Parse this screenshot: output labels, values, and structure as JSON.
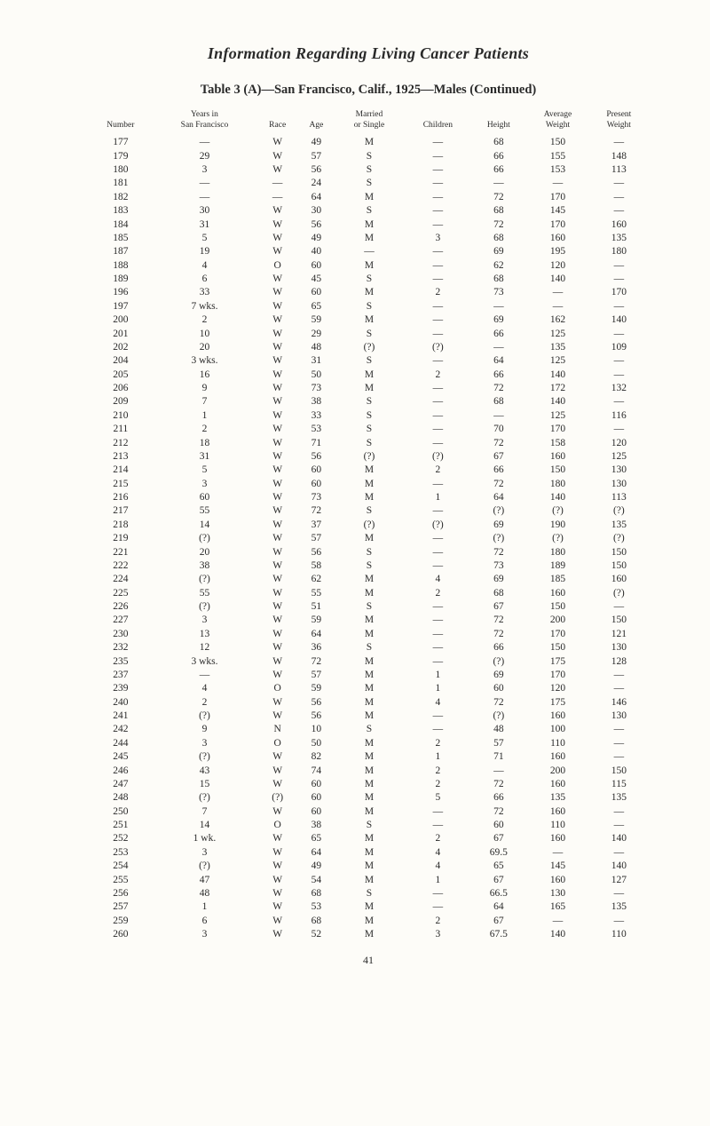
{
  "title": "Information Regarding Living Cancer Patients",
  "caption": "Table 3 (A)—San Francisco, Calif., 1925—Males (Continued)",
  "pageNumber": "41",
  "table": {
    "columns": [
      "Number",
      "Years in\nSan Francisco",
      "Race",
      "Age",
      "Married\nor Single",
      "Children",
      "Height",
      "Average\nWeight",
      "Present\nWeight"
    ],
    "rows": [
      [
        "177",
        "—",
        "W",
        "49",
        "M",
        "—",
        "68",
        "150",
        "—"
      ],
      [
        "179",
        "29",
        "W",
        "57",
        "S",
        "—",
        "66",
        "155",
        "148"
      ],
      [
        "180",
        "3",
        "W",
        "56",
        "S",
        "—",
        "66",
        "153",
        "113"
      ],
      [
        "181",
        "—",
        "—",
        "24",
        "S",
        "—",
        "—",
        "—",
        "—"
      ],
      [
        "182",
        "—",
        "—",
        "64",
        "M",
        "—",
        "72",
        "170",
        "—"
      ],
      [
        "183",
        "30",
        "W",
        "30",
        "S",
        "—",
        "68",
        "145",
        "—"
      ],
      [
        "184",
        "31",
        "W",
        "56",
        "M",
        "—",
        "72",
        "170",
        "160"
      ],
      [
        "185",
        "5",
        "W",
        "49",
        "M",
        "3",
        "68",
        "160",
        "135"
      ],
      [
        "187",
        "19",
        "W",
        "40",
        "—",
        "—",
        "69",
        "195",
        "180"
      ],
      [
        "188",
        "4",
        "O",
        "60",
        "M",
        "—",
        "62",
        "120",
        "—"
      ],
      [
        "189",
        "6",
        "W",
        "45",
        "S",
        "—",
        "68",
        "140",
        "—"
      ],
      [
        "196",
        "33",
        "W",
        "60",
        "M",
        "2",
        "73",
        "—",
        "170"
      ],
      [
        "197",
        "7 wks.",
        "W",
        "65",
        "S",
        "—",
        "—",
        "—",
        "—"
      ],
      [
        "200",
        "2",
        "W",
        "59",
        "M",
        "—",
        "69",
        "162",
        "140"
      ],
      [
        "201",
        "10",
        "W",
        "29",
        "S",
        "—",
        "66",
        "125",
        "—"
      ],
      [
        "202",
        "20",
        "W",
        "48",
        "(?)",
        "(?)",
        "—",
        "135",
        "109"
      ],
      [
        "204",
        "3 wks.",
        "W",
        "31",
        "S",
        "—",
        "64",
        "125",
        "—"
      ],
      [
        "205",
        "16",
        "W",
        "50",
        "M",
        "2",
        "66",
        "140",
        "—"
      ],
      [
        "206",
        "9",
        "W",
        "73",
        "M",
        "—",
        "72",
        "172",
        "132"
      ],
      [
        "209",
        "7",
        "W",
        "38",
        "S",
        "—",
        "68",
        "140",
        "—"
      ],
      [
        "210",
        "1",
        "W",
        "33",
        "S",
        "—",
        "—",
        "125",
        "116"
      ],
      [
        "211",
        "2",
        "W",
        "53",
        "S",
        "—",
        "70",
        "170",
        "—"
      ],
      [
        "212",
        "18",
        "W",
        "71",
        "S",
        "—",
        "72",
        "158",
        "120"
      ],
      [
        "213",
        "31",
        "W",
        "56",
        "(?)",
        "(?)",
        "67",
        "160",
        "125"
      ],
      [
        "214",
        "5",
        "W",
        "60",
        "M",
        "2",
        "66",
        "150",
        "130"
      ],
      [
        "215",
        "3",
        "W",
        "60",
        "M",
        "—",
        "72",
        "180",
        "130"
      ],
      [
        "216",
        "60",
        "W",
        "73",
        "M",
        "1",
        "64",
        "140",
        "113"
      ],
      [
        "217",
        "55",
        "W",
        "72",
        "S",
        "—",
        "(?)",
        "(?)",
        "(?)"
      ],
      [
        "218",
        "14",
        "W",
        "37",
        "(?)",
        "(?)",
        "69",
        "190",
        "135"
      ],
      [
        "219",
        "(?)",
        "W",
        "57",
        "M",
        "—",
        "(?)",
        "(?)",
        "(?)"
      ],
      [
        "221",
        "20",
        "W",
        "56",
        "S",
        "—",
        "72",
        "180",
        "150"
      ],
      [
        "222",
        "38",
        "W",
        "58",
        "S",
        "—",
        "73",
        "189",
        "150"
      ],
      [
        "224",
        "(?)",
        "W",
        "62",
        "M",
        "4",
        "69",
        "185",
        "160"
      ],
      [
        "225",
        "55",
        "W",
        "55",
        "M",
        "2",
        "68",
        "160",
        "(?)"
      ],
      [
        "226",
        "(?)",
        "W",
        "51",
        "S",
        "—",
        "67",
        "150",
        "—"
      ],
      [
        "227",
        "3",
        "W",
        "59",
        "M",
        "—",
        "72",
        "200",
        "150"
      ],
      [
        "230",
        "13",
        "W",
        "64",
        "M",
        "—",
        "72",
        "170",
        "121"
      ],
      [
        "232",
        "12",
        "W",
        "36",
        "S",
        "—",
        "66",
        "150",
        "130"
      ],
      [
        "235",
        "3 wks.",
        "W",
        "72",
        "M",
        "—",
        "(?)",
        "175",
        "128"
      ],
      [
        "237",
        "—",
        "W",
        "57",
        "M",
        "1",
        "69",
        "170",
        "—"
      ],
      [
        "239",
        "4",
        "O",
        "59",
        "M",
        "1",
        "60",
        "120",
        "—"
      ],
      [
        "240",
        "2",
        "W",
        "56",
        "M",
        "4",
        "72",
        "175",
        "146"
      ],
      [
        "241",
        "(?)",
        "W",
        "56",
        "M",
        "—",
        "(?)",
        "160",
        "130"
      ],
      [
        "242",
        "9",
        "N",
        "10",
        "S",
        "—",
        "48",
        "100",
        "—"
      ],
      [
        "244",
        "3",
        "O",
        "50",
        "M",
        "2",
        "57",
        "110",
        "—"
      ],
      [
        "245",
        "(?)",
        "W",
        "82",
        "M",
        "1",
        "71",
        "160",
        "—"
      ],
      [
        "246",
        "43",
        "W",
        "74",
        "M",
        "2",
        "—",
        "200",
        "150"
      ],
      [
        "247",
        "15",
        "W",
        "60",
        "M",
        "2",
        "72",
        "160",
        "115"
      ],
      [
        "248",
        "(?)",
        "(?)",
        "60",
        "M",
        "5",
        "66",
        "135",
        "135"
      ],
      [
        "250",
        "7",
        "W",
        "60",
        "M",
        "—",
        "72",
        "160",
        "—"
      ],
      [
        "251",
        "14",
        "O",
        "38",
        "S",
        "—",
        "60",
        "110",
        "—"
      ],
      [
        "252",
        "1 wk.",
        "W",
        "65",
        "M",
        "2",
        "67",
        "160",
        "140"
      ],
      [
        "253",
        "3",
        "W",
        "64",
        "M",
        "4",
        "69.5",
        "—",
        "—"
      ],
      [
        "254",
        "(?)",
        "W",
        "49",
        "M",
        "4",
        "65",
        "145",
        "140"
      ],
      [
        "255",
        "47",
        "W",
        "54",
        "M",
        "1",
        "67",
        "160",
        "127"
      ],
      [
        "256",
        "48",
        "W",
        "68",
        "S",
        "—",
        "66.5",
        "130",
        "—"
      ],
      [
        "257",
        "1",
        "W",
        "53",
        "M",
        "—",
        "64",
        "165",
        "135"
      ],
      [
        "259",
        "6",
        "W",
        "68",
        "M",
        "2",
        "67",
        "—",
        "—"
      ],
      [
        "260",
        "3",
        "W",
        "52",
        "M",
        "3",
        "67.5",
        "140",
        "110"
      ]
    ]
  }
}
